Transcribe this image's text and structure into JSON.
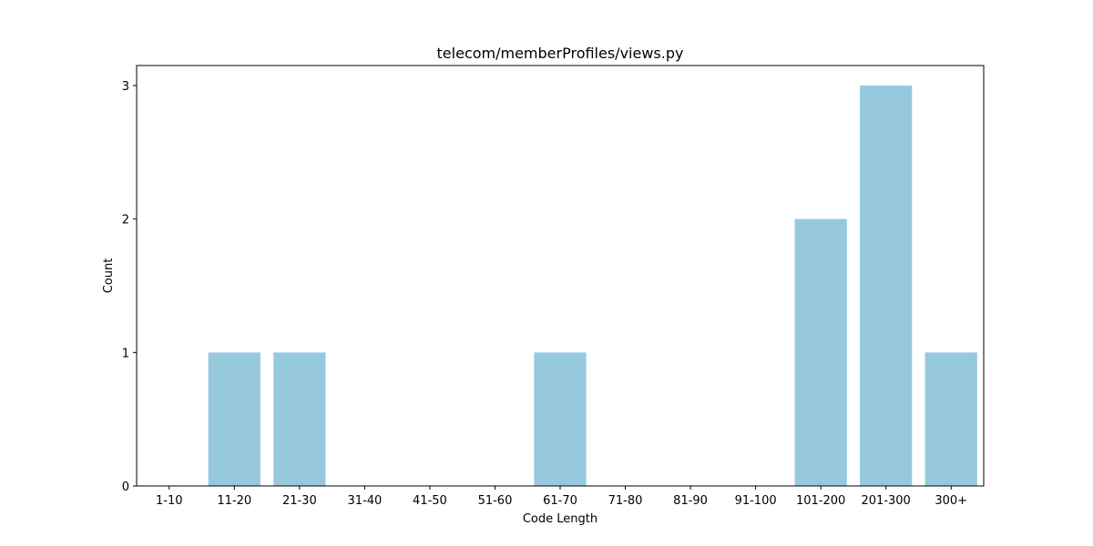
{
  "chart_data": {
    "type": "bar",
    "title": "telecom/memberProfiles/views.py",
    "xlabel": "Code Length",
    "ylabel": "Count",
    "categories": [
      "1-10",
      "11-20",
      "21-30",
      "31-40",
      "41-50",
      "51-60",
      "61-70",
      "71-80",
      "81-90",
      "91-100",
      "101-200",
      "201-300",
      "300+"
    ],
    "values": [
      0,
      1,
      1,
      0,
      0,
      0,
      1,
      0,
      0,
      0,
      2,
      3,
      1
    ],
    "yticks": [
      "0",
      "1",
      "2",
      "3"
    ],
    "ylim": [
      0,
      3.15
    ],
    "grid": false,
    "legend": "none",
    "bar_color": "#96c9de"
  }
}
